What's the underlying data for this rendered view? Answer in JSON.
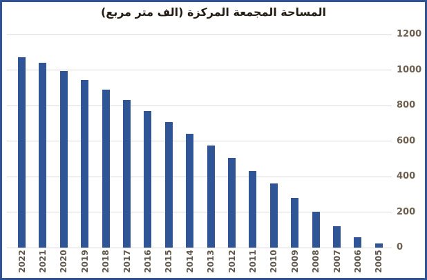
{
  "chart_data": {
    "type": "bar",
    "title": "المساحة المجمعة المركزة (الف متر مربع)",
    "categories": [
      "2022",
      "2021",
      "2020",
      "2019",
      "2018",
      "2017",
      "2016",
      "2015",
      "2014",
      "2013",
      "2012",
      "2011",
      "2010",
      "2009",
      "2008",
      "2007",
      "2006",
      "2005"
    ],
    "values": [
      1070,
      1040,
      995,
      945,
      890,
      833,
      770,
      706,
      640,
      576,
      504,
      431,
      362,
      280,
      201,
      122,
      60,
      25
    ],
    "xlabel": "",
    "ylabel": "",
    "ylim": [
      0,
      1200
    ],
    "yticks": [
      0,
      200,
      400,
      600,
      800,
      1000,
      1200
    ],
    "grid": true,
    "axis_labels_side": "right",
    "legend": "none",
    "bar_color": "#2f5597",
    "frame_border_color": "#2e5496",
    "gridline_color": "#d9d9d9"
  }
}
